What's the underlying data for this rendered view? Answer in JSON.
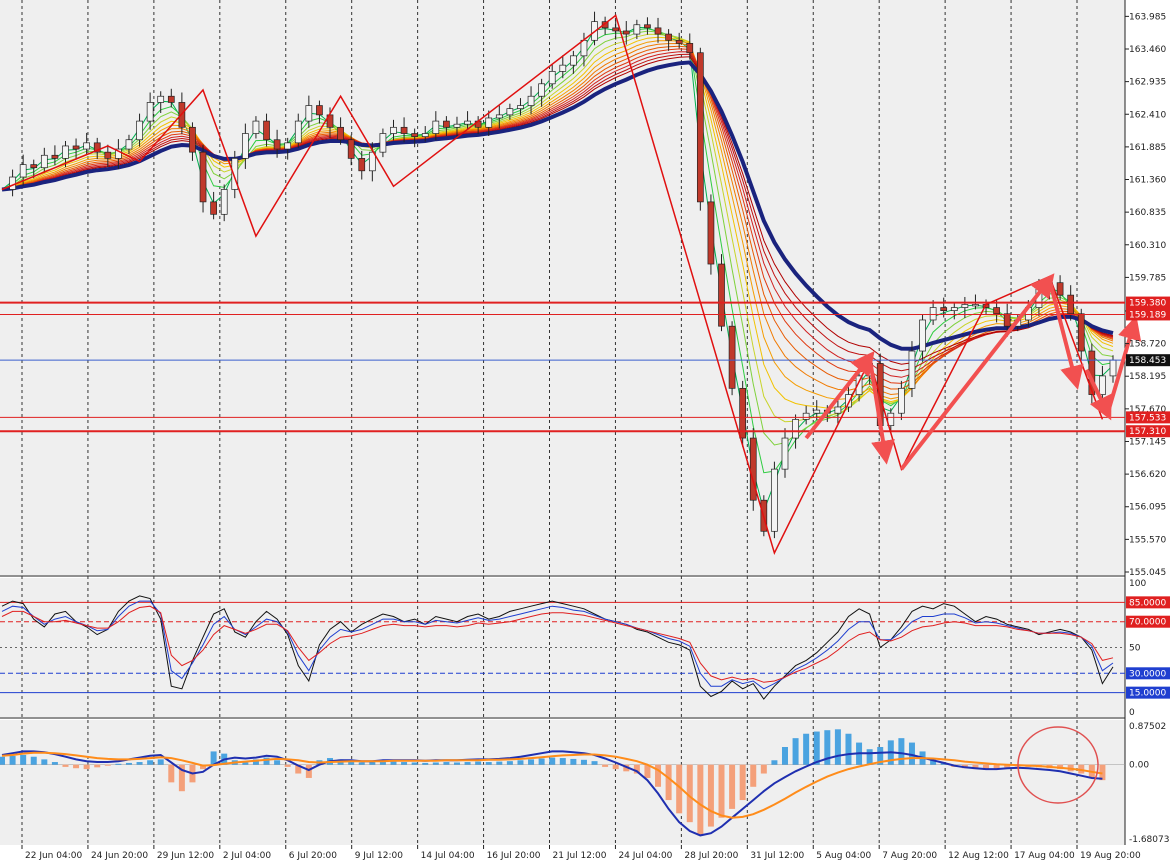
{
  "chart_data": [
    {
      "type": "candlestick",
      "panel": "price",
      "title": "",
      "ylim": [
        155.045,
        164.2
      ],
      "y_ticks": [
        163.985,
        163.46,
        162.935,
        162.41,
        161.885,
        161.36,
        160.835,
        160.31,
        159.785,
        159.245,
        158.72,
        158.195,
        157.67,
        157.145,
        156.62,
        156.095,
        155.57,
        155.045
      ],
      "y_tick_labels": [
        "163.985",
        "163.460",
        "162.935",
        "162.410",
        "161.885",
        "161.360",
        "160.835",
        "160.310",
        "159.785",
        "159.245",
        "158.720",
        "158.195",
        "157.670",
        "157.145",
        "156.620",
        "156.095",
        "155.570",
        "155.045"
      ],
      "price_labels": [
        {
          "text": "159.380",
          "value": 159.38,
          "color": "#e02020"
        },
        {
          "text": "159.189",
          "value": 159.189,
          "color": "#e02020"
        },
        {
          "text": "158.453",
          "value": 158.453,
          "color": "#111111"
        },
        {
          "text": "157.533",
          "value": 157.533,
          "color": "#e02020"
        },
        {
          "text": "157.310",
          "value": 157.31,
          "color": "#e02020"
        }
      ],
      "levels": [
        {
          "value": 159.38,
          "color": "#e02020",
          "width": 2
        },
        {
          "value": 159.189,
          "color": "#e02020",
          "width": 1
        },
        {
          "value": 158.453,
          "color": "#3a5fcd",
          "width": 1
        },
        {
          "value": 157.533,
          "color": "#e02020",
          "width": 1
        },
        {
          "value": 157.31,
          "color": "#e02020",
          "width": 2
        }
      ],
      "close_series": [
        161.2,
        161.4,
        161.6,
        161.55,
        161.75,
        161.7,
        161.9,
        161.85,
        161.95,
        161.8,
        161.7,
        161.85,
        162.0,
        162.3,
        162.6,
        162.7,
        162.6,
        162.2,
        161.8,
        161.0,
        160.8,
        161.2,
        161.7,
        162.1,
        162.3,
        162.0,
        161.85,
        161.95,
        162.3,
        162.55,
        162.4,
        162.2,
        162.0,
        161.7,
        161.5,
        161.8,
        162.1,
        162.2,
        162.1,
        162.05,
        162.1,
        162.3,
        162.2,
        162.25,
        162.3,
        162.2,
        162.35,
        162.4,
        162.5,
        162.55,
        162.7,
        162.9,
        163.1,
        163.2,
        163.35,
        163.6,
        163.9,
        163.8,
        163.75,
        163.7,
        163.85,
        163.8,
        163.7,
        163.6,
        163.55,
        163.4,
        161.0,
        160.0,
        159.0,
        158.0,
        157.2,
        156.2,
        155.7,
        156.7,
        157.2,
        157.5,
        157.6,
        157.65,
        157.6,
        157.7,
        157.9,
        158.2,
        158.4,
        157.4,
        157.6,
        158.0,
        158.6,
        159.1,
        159.3,
        159.25,
        159.3,
        159.35,
        159.35,
        159.3,
        159.2,
        159.0,
        159.1,
        159.3,
        159.6,
        159.7,
        159.5,
        159.2,
        158.6,
        157.9,
        158.2,
        158.453
      ],
      "zigzag": [
        {
          "x": 0,
          "y": 161.2
        },
        {
          "x": 10,
          "y": 161.9
        },
        {
          "x": 13,
          "y": 161.65
        },
        {
          "x": 19,
          "y": 162.8
        },
        {
          "x": 24,
          "y": 160.45
        },
        {
          "x": 32,
          "y": 162.7
        },
        {
          "x": 37,
          "y": 161.25
        },
        {
          "x": 58,
          "y": 164.0
        },
        {
          "x": 73,
          "y": 155.35
        },
        {
          "x": 82,
          "y": 158.45
        },
        {
          "x": 85,
          "y": 156.7
        },
        {
          "x": 93,
          "y": 159.35
        },
        {
          "x": 99,
          "y": 159.8
        },
        {
          "x": 104,
          "y": 157.5
        }
      ],
      "arrows": [
        {
          "from": [
            76,
            157.2
          ],
          "to": [
            82,
            158.5
          ]
        },
        {
          "from": [
            82,
            158.5
          ],
          "to": [
            83.5,
            156.9
          ]
        },
        {
          "from": [
            85,
            156.7
          ],
          "to": [
            99,
            159.75
          ]
        },
        {
          "from": [
            99,
            159.75
          ],
          "to": [
            101.5,
            158.1
          ]
        },
        {
          "from": [
            102.5,
            158.3
          ],
          "to": [
            104.5,
            157.6
          ]
        },
        {
          "from": [
            104.5,
            157.6
          ],
          "to": [
            107,
            159.05
          ]
        }
      ],
      "date_labels": [
        "22 Jun 04:00",
        "24 Jun 20:00",
        "29 Jun 12:00",
        "2 Jul 04:00",
        "6 Jul 20:00",
        "9 Jul 12:00",
        "14 Jul 04:00",
        "16 Jul 20:00",
        "21 Jul 12:00",
        "24 Jul 04:00",
        "28 Jul 20:00",
        "31 Jul 12:00",
        "5 Aug 04:00",
        "7 Aug 20:00",
        "12 Aug 12:00",
        "17 Aug 04:00",
        "19 Aug 20:00"
      ]
    },
    {
      "type": "line",
      "panel": "oscillator",
      "ylim": [
        0,
        100
      ],
      "y_tick_labels": [
        "100",
        "50",
        "0"
      ],
      "levels": [
        {
          "value": 85,
          "text": "85.0000",
          "color": "#e02020",
          "style": "solid"
        },
        {
          "value": 70,
          "text": "70.0000",
          "color": "#e02020",
          "style": "dashed"
        },
        {
          "value": 30,
          "text": "30.0000",
          "color": "#1f3fd0",
          "style": "dashed"
        },
        {
          "value": 15,
          "text": "15.0000",
          "color": "#1f3fd0",
          "style": "solid"
        }
      ],
      "series": [
        {
          "color": "#111111",
          "values": [
            82,
            86,
            84,
            72,
            66,
            76,
            78,
            70,
            66,
            60,
            64,
            78,
            86,
            90,
            88,
            72,
            20,
            18,
            40,
            58,
            76,
            80,
            62,
            58,
            70,
            78,
            72,
            60,
            36,
            24,
            52,
            64,
            70,
            62,
            68,
            72,
            76,
            74,
            70,
            72,
            68,
            74,
            72,
            70,
            74,
            76,
            72,
            74,
            78,
            80,
            82,
            84,
            86,
            84,
            82,
            80,
            76,
            72,
            70,
            68,
            64,
            62,
            58,
            54,
            52,
            48,
            20,
            12,
            16,
            24,
            18,
            22,
            10,
            20,
            28,
            36,
            40,
            46,
            54,
            62,
            74,
            80,
            76,
            50,
            56,
            66,
            78,
            82,
            80,
            84,
            82,
            76,
            70,
            74,
            72,
            68,
            66,
            64,
            60,
            62,
            64,
            62,
            58,
            48,
            22,
            35
          ]
        },
        {
          "color": "#1f3fd0",
          "values": [
            78,
            82,
            81,
            74,
            68,
            72,
            74,
            70,
            67,
            63,
            64,
            74,
            82,
            86,
            86,
            76,
            32,
            26,
            38,
            52,
            68,
            74,
            64,
            60,
            66,
            72,
            70,
            62,
            44,
            32,
            48,
            58,
            64,
            62,
            64,
            68,
            72,
            72,
            70,
            70,
            68,
            71,
            70,
            69,
            71,
            73,
            71,
            72,
            74,
            76,
            78,
            80,
            82,
            81,
            79,
            78,
            75,
            72,
            70,
            68,
            65,
            63,
            60,
            57,
            55,
            51,
            30,
            20,
            20,
            25,
            22,
            24,
            18,
            22,
            27,
            33,
            37,
            42,
            48,
            55,
            64,
            70,
            70,
            56,
            56,
            62,
            70,
            74,
            74,
            76,
            76,
            73,
            69,
            70,
            69,
            67,
            65,
            63,
            61,
            61,
            62,
            61,
            58,
            51,
            32,
            38
          ]
        },
        {
          "color": "#e02020",
          "values": [
            74,
            78,
            78,
            74,
            70,
            70,
            71,
            69,
            67,
            65,
            65,
            70,
            77,
            81,
            82,
            77,
            44,
            36,
            40,
            48,
            60,
            67,
            64,
            61,
            64,
            68,
            68,
            63,
            50,
            40,
            46,
            53,
            58,
            59,
            61,
            64,
            67,
            68,
            67,
            67,
            66,
            67,
            67,
            66,
            67,
            69,
            68,
            69,
            70,
            72,
            74,
            76,
            77,
            77,
            76,
            75,
            73,
            71,
            69,
            67,
            65,
            63,
            61,
            59,
            57,
            54,
            38,
            28,
            25,
            27,
            25,
            26,
            23,
            24,
            27,
            31,
            34,
            38,
            42,
            48,
            55,
            60,
            62,
            56,
            55,
            58,
            63,
            66,
            67,
            69,
            70,
            69,
            67,
            67,
            67,
            66,
            64,
            63,
            61,
            61,
            61,
            60,
            58,
            53,
            40,
            42
          ]
        }
      ]
    },
    {
      "type": "bar",
      "panel": "macd",
      "ylim": [
        -1.68073,
        0.87502
      ],
      "y_tick_labels": [
        "0.87502",
        "0.00",
        "-1.68073"
      ],
      "histogram": [
        0.18,
        0.2,
        0.22,
        0.18,
        0.12,
        0.06,
        -0.05,
        -0.08,
        -0.1,
        -0.06,
        -0.02,
        0.02,
        0.04,
        0.06,
        0.1,
        0.12,
        -0.4,
        -0.6,
        -0.4,
        -0.1,
        0.3,
        0.25,
        0.1,
        0.05,
        0.12,
        0.16,
        0.1,
        -0.05,
        -0.2,
        -0.3,
        0.1,
        0.15,
        0.12,
        0.08,
        0.05,
        0.06,
        0.08,
        0.07,
        0.06,
        0.05,
        0.04,
        0.05,
        0.06,
        0.05,
        0.06,
        0.07,
        0.06,
        0.07,
        0.08,
        0.1,
        0.12,
        0.14,
        0.16,
        0.15,
        0.13,
        0.11,
        0.08,
        -0.05,
        -0.1,
        -0.15,
        -0.2,
        -0.3,
        -0.5,
        -0.8,
        -1.1,
        -1.3,
        -1.6,
        -1.4,
        -1.2,
        -1.0,
        -0.8,
        -0.5,
        -0.2,
        0.1,
        0.4,
        0.6,
        0.7,
        0.75,
        0.78,
        0.8,
        0.7,
        0.5,
        0.35,
        0.4,
        0.55,
        0.6,
        0.5,
        0.3,
        0.15,
        0.05,
        -0.05,
        -0.08,
        -0.1,
        -0.12,
        -0.1,
        -0.06,
        -0.04,
        -0.05,
        -0.06,
        -0.08,
        -0.1,
        -0.15,
        -0.2,
        -0.3,
        -0.35
      ],
      "series": [
        {
          "color": "#1f2fb0",
          "values": [
            0.22,
            0.26,
            0.3,
            0.3,
            0.28,
            0.24,
            0.18,
            0.12,
            0.08,
            0.06,
            0.06,
            0.08,
            0.12,
            0.16,
            0.2,
            0.22,
            0.05,
            -0.12,
            -0.2,
            -0.16,
            0.0,
            0.12,
            0.16,
            0.14,
            0.16,
            0.2,
            0.18,
            0.1,
            -0.02,
            -0.12,
            0.0,
            0.08,
            0.1,
            0.1,
            0.08,
            0.08,
            0.1,
            0.1,
            0.1,
            0.1,
            0.09,
            0.1,
            0.1,
            0.1,
            0.11,
            0.12,
            0.12,
            0.13,
            0.15,
            0.18,
            0.22,
            0.26,
            0.3,
            0.3,
            0.28,
            0.26,
            0.22,
            0.14,
            0.05,
            -0.05,
            -0.15,
            -0.35,
            -0.65,
            -1.0,
            -1.3,
            -1.5,
            -1.6,
            -1.55,
            -1.4,
            -1.2,
            -1.0,
            -0.8,
            -0.6,
            -0.42,
            -0.28,
            -0.15,
            -0.04,
            0.06,
            0.14,
            0.2,
            0.24,
            0.26,
            0.26,
            0.27,
            0.28,
            0.26,
            0.22,
            0.16,
            0.1,
            0.04,
            -0.02,
            -0.06,
            -0.08,
            -0.1,
            -0.1,
            -0.08,
            -0.07,
            -0.08,
            -0.1,
            -0.12,
            -0.15,
            -0.2,
            -0.25,
            -0.3,
            -0.32
          ]
        },
        {
          "color": "#ff8c1a",
          "values": [
            0.2,
            0.22,
            0.25,
            0.27,
            0.27,
            0.26,
            0.24,
            0.21,
            0.18,
            0.15,
            0.13,
            0.12,
            0.12,
            0.13,
            0.15,
            0.17,
            0.15,
            0.1,
            0.04,
            -0.02,
            -0.01,
            0.02,
            0.05,
            0.07,
            0.09,
            0.11,
            0.13,
            0.12,
            0.1,
            0.06,
            0.05,
            0.06,
            0.07,
            0.08,
            0.08,
            0.08,
            0.08,
            0.09,
            0.09,
            0.09,
            0.09,
            0.09,
            0.1,
            0.1,
            0.1,
            0.1,
            0.11,
            0.11,
            0.12,
            0.13,
            0.15,
            0.17,
            0.19,
            0.21,
            0.22,
            0.23,
            0.23,
            0.21,
            0.18,
            0.13,
            0.08,
            0.0,
            -0.12,
            -0.3,
            -0.5,
            -0.72,
            -0.9,
            -1.05,
            -1.15,
            -1.2,
            -1.18,
            -1.12,
            -1.02,
            -0.9,
            -0.77,
            -0.63,
            -0.5,
            -0.38,
            -0.27,
            -0.18,
            -0.1,
            -0.04,
            0.01,
            0.06,
            0.1,
            0.13,
            0.15,
            0.15,
            0.14,
            0.12,
            0.1,
            0.07,
            0.05,
            0.03,
            0.01,
            0.0,
            -0.01,
            -0.02,
            -0.03,
            -0.05,
            -0.07,
            -0.09,
            -0.12,
            -0.16,
            -0.2
          ]
        }
      ]
    }
  ]
}
